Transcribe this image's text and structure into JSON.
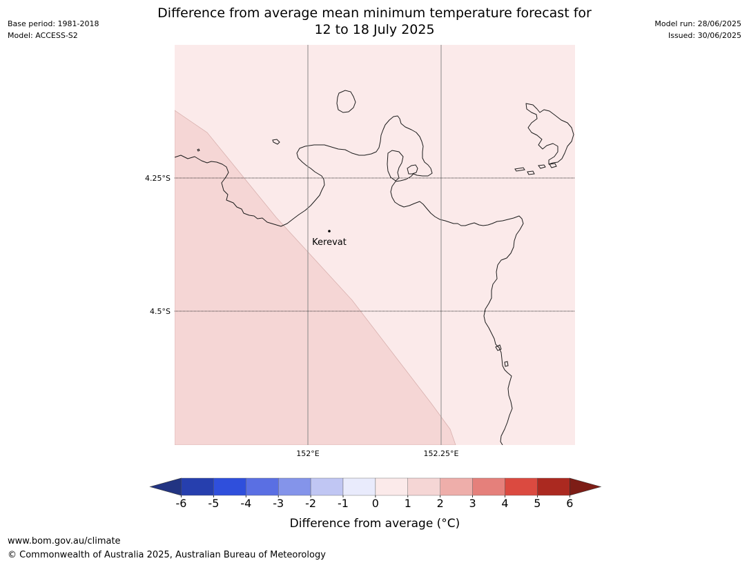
{
  "header": {
    "title_line1": "Difference from average mean minimum temperature forecast for",
    "title_line2": "12 to 18 July 2025",
    "base_period": "Base period: 1981-2018",
    "model": "Model: ACCESS-S2",
    "model_run": "Model run: 28/06/2025",
    "issued": "Issued: 30/06/2025"
  },
  "map": {
    "lat_labels": [
      "4.25°S",
      "4.5°S"
    ],
    "lon_labels": [
      "152°E",
      "152.25°E"
    ],
    "place_name": "Kerevat",
    "anomaly_fill_colors": {
      "zero_to_one": "#fbeaea",
      "one_to_two": "#f5d6d5"
    }
  },
  "colorbar": {
    "title": "Difference from average (°C)",
    "ticks": [
      "-6",
      "-5",
      "-4",
      "-3",
      "-2",
      "-1",
      "0",
      "1",
      "2",
      "3",
      "4",
      "5",
      "6"
    ],
    "colors": [
      "#223482",
      "#263fae",
      "#2f4fdc",
      "#5a6fe3",
      "#8494ea",
      "#c0c6f3",
      "#e9ebfc",
      "#fbeaea",
      "#f5d6d5",
      "#eeaeaa",
      "#e5807b",
      "#db4a40",
      "#ab2920",
      "#7d1d16"
    ]
  },
  "footer": {
    "website": "www.bom.gov.au/climate",
    "copyright": "© Commonwealth of Australia 2025, Australian Bureau of Meteorology"
  }
}
